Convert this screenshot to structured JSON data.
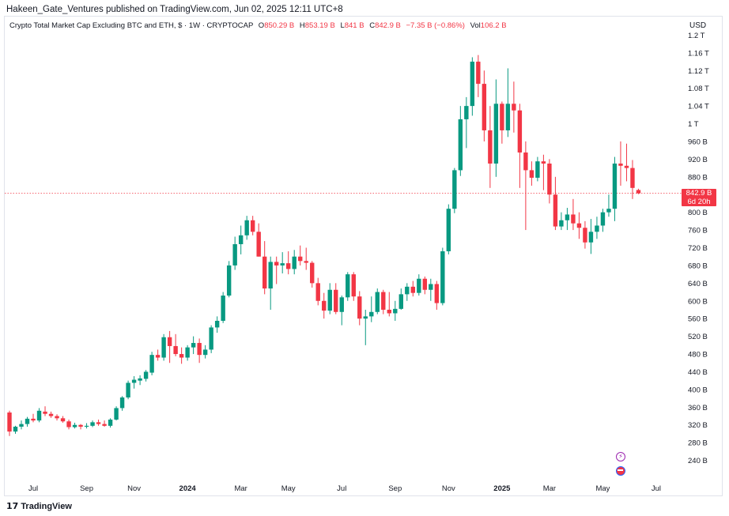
{
  "published_line": "Hakeen_Gate_Ventures published on TradingView.com, Jun 02, 2025 12:11 UTC+8",
  "legend": {
    "title": "Crypto Total Market Cap Excluding BTC and ETH, $ · 1W · CRYPTOCAP",
    "open_label": "O",
    "open_value": "850.29 B",
    "high_label": "H",
    "high_value": "853.19 B",
    "low_label": "L",
    "low_value": "841 B",
    "close_label": "C",
    "close_value": "842.9 B",
    "change_value": "−7.35 B (−0.86%)",
    "vol_label": "Vol",
    "vol_value": "106.2 B"
  },
  "currency_button": "USD",
  "footer_brand": "TradingView",
  "price_tag": {
    "price": "842.9 B",
    "countdown": "6d 20h"
  },
  "colors": {
    "up": "#089981",
    "down": "#f23645",
    "axis_text": "#131722",
    "grid": "#e0e3eb"
  },
  "icons": {
    "event_flash": "lightning-icon",
    "event_flag": "us-flag-icon"
  },
  "chart_data": {
    "type": "candlestick",
    "timeframe": "1W",
    "y_axis_unit": "B (USD billions)",
    "y_ticks": [
      {
        "label": "240 B",
        "value": 240
      },
      {
        "label": "280 B",
        "value": 280
      },
      {
        "label": "320 B",
        "value": 320
      },
      {
        "label": "360 B",
        "value": 360
      },
      {
        "label": "400 B",
        "value": 400
      },
      {
        "label": "440 B",
        "value": 440
      },
      {
        "label": "480 B",
        "value": 480
      },
      {
        "label": "520 B",
        "value": 520
      },
      {
        "label": "560 B",
        "value": 560
      },
      {
        "label": "600 B",
        "value": 600
      },
      {
        "label": "640 B",
        "value": 640
      },
      {
        "label": "680 B",
        "value": 680
      },
      {
        "label": "720 B",
        "value": 720
      },
      {
        "label": "760 B",
        "value": 760
      },
      {
        "label": "800 B",
        "value": 800
      },
      {
        "label": "880 B",
        "value": 880
      },
      {
        "label": "920 B",
        "value": 920
      },
      {
        "label": "960 B",
        "value": 960
      },
      {
        "label": "1 T",
        "value": 1000
      },
      {
        "label": "1.04 T",
        "value": 1040
      },
      {
        "label": "1.08 T",
        "value": 1080
      },
      {
        "label": "1.12 T",
        "value": 1120
      },
      {
        "label": "1.16 T",
        "value": 1160
      },
      {
        "label": "1.2 T",
        "value": 1200
      }
    ],
    "x_ticks": [
      {
        "label": "Jul",
        "index": 4,
        "bold": false
      },
      {
        "label": "Sep",
        "index": 13,
        "bold": false
      },
      {
        "label": "Nov",
        "index": 21,
        "bold": false
      },
      {
        "label": "2024",
        "index": 30,
        "bold": true
      },
      {
        "label": "Mar",
        "index": 39,
        "bold": false
      },
      {
        "label": "May",
        "index": 47,
        "bold": false
      },
      {
        "label": "Jul",
        "index": 56,
        "bold": false
      },
      {
        "label": "Sep",
        "index": 65,
        "bold": false
      },
      {
        "label": "Nov",
        "index": 74,
        "bold": false
      },
      {
        "label": "2025",
        "index": 83,
        "bold": true
      },
      {
        "label": "Mar",
        "index": 91,
        "bold": false
      },
      {
        "label": "May",
        "index": 100,
        "bold": false
      },
      {
        "label": "Jul",
        "index": 109,
        "bold": false
      }
    ],
    "y_range": [
      200,
      1240
    ],
    "x_range": [
      0,
      113
    ],
    "last_price": 842.9,
    "candles": [
      {
        "o": 348,
        "h": 352,
        "l": 295,
        "c": 305
      },
      {
        "o": 305,
        "h": 318,
        "l": 300,
        "c": 316
      },
      {
        "o": 316,
        "h": 330,
        "l": 310,
        "c": 322
      },
      {
        "o": 322,
        "h": 338,
        "l": 316,
        "c": 334
      },
      {
        "o": 334,
        "h": 345,
        "l": 326,
        "c": 330
      },
      {
        "o": 330,
        "h": 358,
        "l": 326,
        "c": 352
      },
      {
        "o": 350,
        "h": 362,
        "l": 340,
        "c": 345
      },
      {
        "o": 345,
        "h": 350,
        "l": 336,
        "c": 340
      },
      {
        "o": 340,
        "h": 344,
        "l": 330,
        "c": 335
      },
      {
        "o": 335,
        "h": 340,
        "l": 325,
        "c": 328
      },
      {
        "o": 328,
        "h": 332,
        "l": 310,
        "c": 315
      },
      {
        "o": 315,
        "h": 325,
        "l": 312,
        "c": 320
      },
      {
        "o": 320,
        "h": 322,
        "l": 310,
        "c": 316
      },
      {
        "o": 316,
        "h": 324,
        "l": 312,
        "c": 318
      },
      {
        "o": 318,
        "h": 330,
        "l": 315,
        "c": 326
      },
      {
        "o": 326,
        "h": 332,
        "l": 318,
        "c": 322
      },
      {
        "o": 322,
        "h": 330,
        "l": 316,
        "c": 318
      },
      {
        "o": 318,
        "h": 335,
        "l": 314,
        "c": 332
      },
      {
        "o": 332,
        "h": 362,
        "l": 330,
        "c": 358
      },
      {
        "o": 358,
        "h": 385,
        "l": 352,
        "c": 382
      },
      {
        "o": 382,
        "h": 420,
        "l": 378,
        "c": 415
      },
      {
        "o": 415,
        "h": 430,
        "l": 402,
        "c": 422
      },
      {
        "o": 420,
        "h": 432,
        "l": 410,
        "c": 425
      },
      {
        "o": 424,
        "h": 444,
        "l": 418,
        "c": 440
      },
      {
        "o": 438,
        "h": 485,
        "l": 432,
        "c": 478
      },
      {
        "o": 478,
        "h": 490,
        "l": 465,
        "c": 472
      },
      {
        "o": 472,
        "h": 525,
        "l": 465,
        "c": 518
      },
      {
        "o": 518,
        "h": 532,
        "l": 460,
        "c": 498
      },
      {
        "o": 498,
        "h": 525,
        "l": 475,
        "c": 480
      },
      {
        "o": 480,
        "h": 495,
        "l": 458,
        "c": 472
      },
      {
        "o": 472,
        "h": 500,
        "l": 465,
        "c": 495
      },
      {
        "o": 495,
        "h": 520,
        "l": 480,
        "c": 505
      },
      {
        "o": 505,
        "h": 515,
        "l": 460,
        "c": 478
      },
      {
        "o": 478,
        "h": 500,
        "l": 470,
        "c": 490
      },
      {
        "o": 490,
        "h": 545,
        "l": 482,
        "c": 540
      },
      {
        "o": 540,
        "h": 565,
        "l": 528,
        "c": 555
      },
      {
        "o": 555,
        "h": 620,
        "l": 550,
        "c": 612
      },
      {
        "o": 612,
        "h": 690,
        "l": 608,
        "c": 680
      },
      {
        "o": 680,
        "h": 745,
        "l": 670,
        "c": 728
      },
      {
        "o": 728,
        "h": 770,
        "l": 705,
        "c": 748
      },
      {
        "o": 748,
        "h": 792,
        "l": 738,
        "c": 782
      },
      {
        "o": 782,
        "h": 792,
        "l": 748,
        "c": 756
      },
      {
        "o": 756,
        "h": 775,
        "l": 700,
        "c": 700
      },
      {
        "o": 700,
        "h": 735,
        "l": 615,
        "c": 628
      },
      {
        "o": 628,
        "h": 700,
        "l": 580,
        "c": 688
      },
      {
        "o": 688,
        "h": 700,
        "l": 638,
        "c": 680
      },
      {
        "o": 680,
        "h": 710,
        "l": 662,
        "c": 685
      },
      {
        "o": 685,
        "h": 712,
        "l": 660,
        "c": 672
      },
      {
        "o": 672,
        "h": 715,
        "l": 660,
        "c": 700
      },
      {
        "o": 700,
        "h": 725,
        "l": 680,
        "c": 690
      },
      {
        "o": 690,
        "h": 720,
        "l": 670,
        "c": 686
      },
      {
        "o": 686,
        "h": 690,
        "l": 630,
        "c": 640
      },
      {
        "o": 640,
        "h": 652,
        "l": 590,
        "c": 600
      },
      {
        "o": 600,
        "h": 618,
        "l": 560,
        "c": 578
      },
      {
        "o": 578,
        "h": 640,
        "l": 570,
        "c": 625
      },
      {
        "o": 625,
        "h": 640,
        "l": 570,
        "c": 575
      },
      {
        "o": 575,
        "h": 612,
        "l": 545,
        "c": 608
      },
      {
        "o": 608,
        "h": 665,
        "l": 600,
        "c": 660
      },
      {
        "o": 660,
        "h": 665,
        "l": 600,
        "c": 610
      },
      {
        "o": 610,
        "h": 622,
        "l": 545,
        "c": 560
      },
      {
        "o": 560,
        "h": 580,
        "l": 500,
        "c": 565
      },
      {
        "o": 565,
        "h": 610,
        "l": 552,
        "c": 575
      },
      {
        "o": 575,
        "h": 628,
        "l": 570,
        "c": 620
      },
      {
        "o": 620,
        "h": 625,
        "l": 570,
        "c": 580
      },
      {
        "o": 580,
        "h": 620,
        "l": 565,
        "c": 572
      },
      {
        "o": 572,
        "h": 600,
        "l": 555,
        "c": 582
      },
      {
        "o": 582,
        "h": 628,
        "l": 580,
        "c": 615
      },
      {
        "o": 615,
        "h": 640,
        "l": 600,
        "c": 632
      },
      {
        "o": 632,
        "h": 645,
        "l": 610,
        "c": 618
      },
      {
        "o": 618,
        "h": 660,
        "l": 612,
        "c": 650
      },
      {
        "o": 650,
        "h": 655,
        "l": 615,
        "c": 625
      },
      {
        "o": 625,
        "h": 650,
        "l": 600,
        "c": 638
      },
      {
        "o": 638,
        "h": 645,
        "l": 580,
        "c": 595
      },
      {
        "o": 595,
        "h": 720,
        "l": 590,
        "c": 712
      },
      {
        "o": 712,
        "h": 818,
        "l": 705,
        "c": 808
      },
      {
        "o": 808,
        "h": 900,
        "l": 798,
        "c": 895
      },
      {
        "o": 895,
        "h": 1040,
        "l": 882,
        "c": 1010
      },
      {
        "o": 1010,
        "h": 1060,
        "l": 945,
        "c": 1040
      },
      {
        "o": 1040,
        "h": 1150,
        "l": 1018,
        "c": 1140
      },
      {
        "o": 1140,
        "h": 1155,
        "l": 1060,
        "c": 1090
      },
      {
        "o": 1090,
        "h": 1120,
        "l": 960,
        "c": 985
      },
      {
        "o": 985,
        "h": 1040,
        "l": 855,
        "c": 910
      },
      {
        "o": 910,
        "h": 1100,
        "l": 880,
        "c": 1045
      },
      {
        "o": 1045,
        "h": 1050,
        "l": 955,
        "c": 985
      },
      {
        "o": 985,
        "h": 1125,
        "l": 970,
        "c": 1045
      },
      {
        "o": 1045,
        "h": 1095,
        "l": 980,
        "c": 1030
      },
      {
        "o": 1030,
        "h": 1045,
        "l": 855,
        "c": 935
      },
      {
        "o": 935,
        "h": 960,
        "l": 760,
        "c": 895
      },
      {
        "o": 895,
        "h": 915,
        "l": 860,
        "c": 878
      },
      {
        "o": 878,
        "h": 925,
        "l": 870,
        "c": 915
      },
      {
        "o": 915,
        "h": 930,
        "l": 850,
        "c": 910
      },
      {
        "o": 910,
        "h": 920,
        "l": 820,
        "c": 840
      },
      {
        "o": 840,
        "h": 880,
        "l": 760,
        "c": 768
      },
      {
        "o": 768,
        "h": 800,
        "l": 760,
        "c": 782
      },
      {
        "o": 782,
        "h": 810,
        "l": 760,
        "c": 795
      },
      {
        "o": 795,
        "h": 830,
        "l": 760,
        "c": 775
      },
      {
        "o": 775,
        "h": 800,
        "l": 740,
        "c": 765
      },
      {
        "o": 765,
        "h": 780,
        "l": 718,
        "c": 732
      },
      {
        "o": 732,
        "h": 785,
        "l": 706,
        "c": 756
      },
      {
        "o": 756,
        "h": 790,
        "l": 740,
        "c": 770
      },
      {
        "o": 770,
        "h": 808,
        "l": 756,
        "c": 800
      },
      {
        "o": 800,
        "h": 840,
        "l": 790,
        "c": 808
      },
      {
        "o": 808,
        "h": 925,
        "l": 780,
        "c": 910
      },
      {
        "o": 910,
        "h": 960,
        "l": 860,
        "c": 905
      },
      {
        "o": 905,
        "h": 955,
        "l": 870,
        "c": 900
      },
      {
        "o": 900,
        "h": 918,
        "l": 830,
        "c": 855
      },
      {
        "o": 850.29,
        "h": 853.19,
        "l": 841,
        "c": 842.9
      }
    ]
  }
}
